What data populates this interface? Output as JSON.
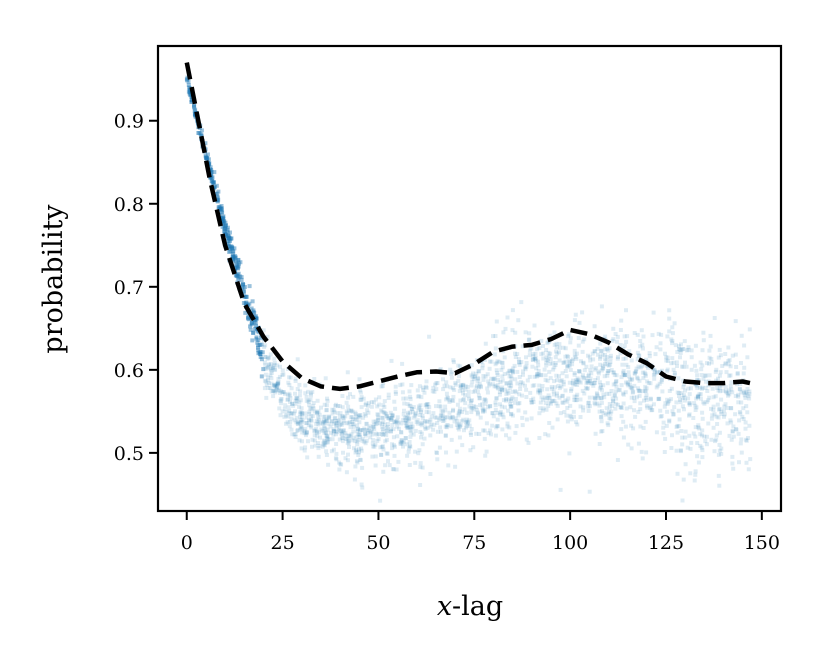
{
  "chart_data": {
    "type": "scatter",
    "xlabel_var": "x",
    "xlabel_rest": "-lag",
    "ylabel": "probability",
    "xlim": [
      -7.5,
      155
    ],
    "ylim": [
      0.43,
      0.99
    ],
    "xticks": [
      0,
      25,
      50,
      75,
      100,
      125,
      150
    ],
    "yticks": [
      0.5,
      0.6,
      0.7,
      0.8,
      0.9
    ],
    "xtick_labels": [
      "0",
      "25",
      "50",
      "75",
      "100",
      "125",
      "150"
    ],
    "ytick_labels": [
      "0.5",
      "0.6",
      "0.7",
      "0.8",
      "0.9"
    ],
    "grid": false,
    "scatter_color": "#1f77b4",
    "scatter_x_range": [
      0,
      147
    ],
    "scatter_center": {
      "x": [
        0,
        5,
        10,
        15,
        20,
        25,
        30,
        35,
        40,
        45,
        50,
        55,
        60,
        65,
        70,
        75,
        80,
        85,
        90,
        95,
        100,
        105,
        110,
        115,
        120,
        125,
        130,
        135,
        140,
        145,
        147
      ],
      "y": [
        0.95,
        0.86,
        0.77,
        0.69,
        0.62,
        0.57,
        0.545,
        0.533,
        0.527,
        0.528,
        0.535,
        0.538,
        0.54,
        0.545,
        0.555,
        0.565,
        0.575,
        0.585,
        0.59,
        0.59,
        0.59,
        0.59,
        0.588,
        0.585,
        0.58,
        0.575,
        0.57,
        0.567,
        0.565,
        0.565,
        0.565
      ]
    },
    "scatter_spread": {
      "x": [
        0,
        10,
        20,
        30,
        50,
        80,
        110,
        130,
        147
      ],
      "y": [
        0.003,
        0.006,
        0.015,
        0.02,
        0.024,
        0.028,
        0.035,
        0.04,
        0.04
      ]
    },
    "series": [
      {
        "style": "dashed",
        "color": "#000000",
        "x": [
          0,
          3,
          6,
          10,
          15,
          20,
          25,
          30,
          35,
          40,
          45,
          50,
          55,
          60,
          65,
          70,
          75,
          80,
          85,
          90,
          95,
          100,
          105,
          110,
          115,
          120,
          125,
          130,
          135,
          140,
          145,
          148
        ],
        "y": [
          0.97,
          0.9,
          0.83,
          0.75,
          0.68,
          0.64,
          0.61,
          0.59,
          0.58,
          0.577,
          0.58,
          0.586,
          0.592,
          0.597,
          0.598,
          0.596,
          0.607,
          0.622,
          0.628,
          0.63,
          0.637,
          0.648,
          0.643,
          0.633,
          0.619,
          0.608,
          0.592,
          0.586,
          0.584,
          0.584,
          0.586,
          0.583
        ]
      }
    ]
  }
}
